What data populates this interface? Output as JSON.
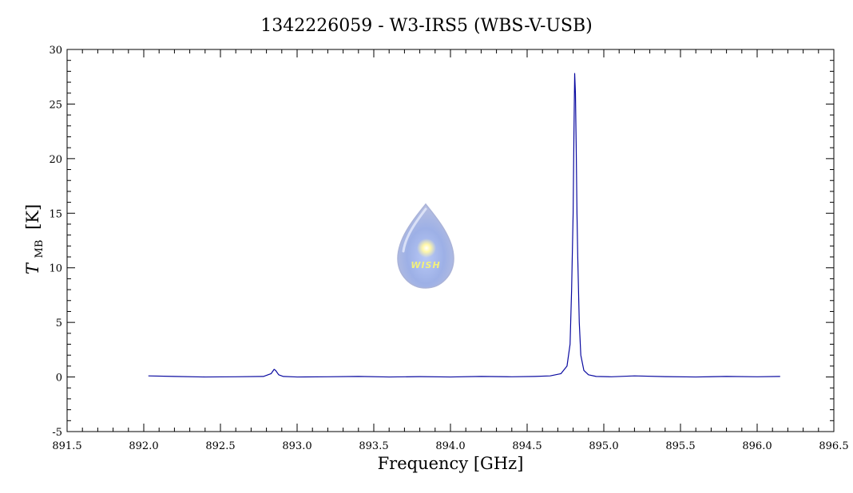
{
  "chart_data": {
    "type": "line",
    "title": "1342226059 - W3-IRS5 (WBS-V-USB)",
    "xlabel": "Frequency [GHz]",
    "ylabel": {
      "main": "T",
      "subscript": "MB",
      "unit": "[K]"
    },
    "xlim": [
      891.5,
      896.5
    ],
    "ylim": [
      -5,
      30
    ],
    "x_ticks": [
      "891.5",
      "892.0",
      "892.5",
      "893.0",
      "893.5",
      "894.0",
      "894.5",
      "895.0",
      "895.5",
      "896.0",
      "896.5"
    ],
    "y_ticks": [
      "-5",
      "0",
      "5",
      "10",
      "15",
      "20",
      "25",
      "30"
    ],
    "grid": false,
    "series": [
      {
        "color": "#0a0aa0",
        "x": [
          892.03,
          892.2,
          892.4,
          892.6,
          892.78,
          892.83,
          892.85,
          892.86,
          892.88,
          892.91,
          893.0,
          893.2,
          893.4,
          893.6,
          893.8,
          894.0,
          894.2,
          894.4,
          894.55,
          894.65,
          894.72,
          894.76,
          894.78,
          894.79,
          894.8,
          894.805,
          894.81,
          894.815,
          894.82,
          894.825,
          894.83,
          894.84,
          894.85,
          894.87,
          894.9,
          894.95,
          895.05,
          895.2,
          895.4,
          895.6,
          895.8,
          896.0,
          896.15
        ],
        "y": [
          0.1,
          0.05,
          0.0,
          0.02,
          0.05,
          0.3,
          0.7,
          0.6,
          0.2,
          0.05,
          0.0,
          0.02,
          0.05,
          0.0,
          0.03,
          0.0,
          0.05,
          0.02,
          0.05,
          0.1,
          0.3,
          1.0,
          3.0,
          8.0,
          15.0,
          22.0,
          27.8,
          26.0,
          21.0,
          15.0,
          11.0,
          5.0,
          2.0,
          0.6,
          0.2,
          0.05,
          0.02,
          0.1,
          0.03,
          0.0,
          0.05,
          0.02,
          0.05
        ]
      }
    ]
  },
  "logo": {
    "text": "WISH"
  }
}
